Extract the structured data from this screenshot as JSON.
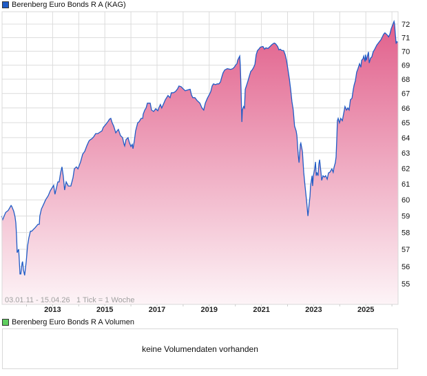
{
  "legend": {
    "price_label": "Berenberg Euro Bonds R A (KAG)",
    "price_color": "#1f5bc6",
    "volume_label": "Berenberg Euro Bonds R A Volumen",
    "volume_color": "#5fcf5f"
  },
  "volume": {
    "message": "keine Volumendaten vorhanden"
  },
  "chart_data": {
    "type": "area",
    "title": "Berenberg Euro Bonds R A (KAG)",
    "range_label": "03.01.11 - 15.04.26",
    "tick_label": "1 Tick = 1 Woche",
    "xlabel": "",
    "ylabel": "",
    "y_scale": "log",
    "ylim": [
      54.2,
      72.9
    ],
    "xlim": [
      2011.0,
      2026.29
    ],
    "grid": true,
    "x_tick_labels": [
      "2013",
      "2015",
      "2017",
      "2019",
      "2021",
      "2023",
      "2025"
    ],
    "y_tick_labels": [
      "72",
      "71",
      "70",
      "69",
      "68",
      "67",
      "66",
      "65",
      "64",
      "63",
      "62",
      "61",
      "60",
      "59",
      "58",
      "57",
      "56",
      "55"
    ],
    "colors": {
      "line": "#1f5bc6",
      "fill_top": "#e05a87",
      "fill_bottom": "#fdf4f7"
    },
    "series": [
      {
        "name": "Berenberg Euro Bonds R A (KAG)",
        "points": [
          [
            2011.04,
            59.0
          ],
          [
            2011.09,
            58.79
          ],
          [
            2011.2,
            59.22
          ],
          [
            2011.3,
            59.35
          ],
          [
            2011.41,
            59.65
          ],
          [
            2011.43,
            59.61
          ],
          [
            2011.51,
            59.3
          ],
          [
            2011.56,
            58.96
          ],
          [
            2011.59,
            58.58
          ],
          [
            2011.62,
            57.76
          ],
          [
            2011.64,
            56.8
          ],
          [
            2011.7,
            57.0
          ],
          [
            2011.72,
            56.44
          ],
          [
            2011.75,
            55.56
          ],
          [
            2011.78,
            55.56
          ],
          [
            2011.83,
            56.2
          ],
          [
            2011.85,
            56.28
          ],
          [
            2011.88,
            55.8
          ],
          [
            2011.93,
            55.48
          ],
          [
            2011.99,
            56.28
          ],
          [
            2012.04,
            57.2
          ],
          [
            2012.09,
            57.68
          ],
          [
            2012.15,
            58.08
          ],
          [
            2012.2,
            58.08
          ],
          [
            2012.28,
            58.21
          ],
          [
            2012.33,
            58.29
          ],
          [
            2012.44,
            58.5
          ],
          [
            2012.49,
            58.5
          ],
          [
            2012.51,
            59.0
          ],
          [
            2012.57,
            59.43
          ],
          [
            2012.65,
            59.7
          ],
          [
            2012.73,
            60.0
          ],
          [
            2012.83,
            60.26
          ],
          [
            2012.91,
            60.57
          ],
          [
            2012.99,
            60.78
          ],
          [
            2013.04,
            60.91
          ],
          [
            2013.09,
            60.35
          ],
          [
            2013.15,
            60.78
          ],
          [
            2013.2,
            61.13
          ],
          [
            2013.25,
            61.13
          ],
          [
            2013.31,
            61.74
          ],
          [
            2013.36,
            62.09
          ],
          [
            2013.41,
            61.48
          ],
          [
            2013.46,
            60.61
          ],
          [
            2013.52,
            61.13
          ],
          [
            2013.6,
            60.87
          ],
          [
            2013.7,
            60.87
          ],
          [
            2013.78,
            61.39
          ],
          [
            2013.83,
            61.96
          ],
          [
            2013.91,
            62.09
          ],
          [
            2013.97,
            61.96
          ],
          [
            2014.02,
            62.18
          ],
          [
            2014.07,
            62.41
          ],
          [
            2014.15,
            62.91
          ],
          [
            2014.23,
            63.09
          ],
          [
            2014.31,
            63.45
          ],
          [
            2014.39,
            63.77
          ],
          [
            2014.44,
            63.86
          ],
          [
            2014.49,
            63.91
          ],
          [
            2014.57,
            64.05
          ],
          [
            2014.65,
            64.27
          ],
          [
            2014.73,
            64.27
          ],
          [
            2014.81,
            64.36
          ],
          [
            2014.89,
            64.45
          ],
          [
            2014.94,
            64.68
          ],
          [
            2015.05,
            64.91
          ],
          [
            2015.13,
            65.1
          ],
          [
            2015.18,
            65.24
          ],
          [
            2015.23,
            65.29
          ],
          [
            2015.28,
            65.0
          ],
          [
            2015.34,
            64.77
          ],
          [
            2015.42,
            64.32
          ],
          [
            2015.47,
            64.45
          ],
          [
            2015.52,
            64.55
          ],
          [
            2015.6,
            64.14
          ],
          [
            2015.68,
            64.0
          ],
          [
            2015.73,
            63.59
          ],
          [
            2015.76,
            63.45
          ],
          [
            2015.81,
            63.86
          ],
          [
            2015.89,
            64.0
          ],
          [
            2015.94,
            63.68
          ],
          [
            2016.0,
            63.41
          ],
          [
            2016.05,
            63.55
          ],
          [
            2016.08,
            63.27
          ],
          [
            2016.13,
            63.77
          ],
          [
            2016.18,
            64.45
          ],
          [
            2016.26,
            65.0
          ],
          [
            2016.31,
            65.05
          ],
          [
            2016.39,
            65.29
          ],
          [
            2016.45,
            65.29
          ],
          [
            2016.47,
            65.57
          ],
          [
            2016.53,
            65.86
          ],
          [
            2016.58,
            66.0
          ],
          [
            2016.63,
            66.33
          ],
          [
            2016.74,
            66.33
          ],
          [
            2016.79,
            65.86
          ],
          [
            2016.87,
            65.76
          ],
          [
            2016.95,
            65.95
          ],
          [
            2017.03,
            65.81
          ],
          [
            2017.08,
            66.05
          ],
          [
            2017.13,
            66.24
          ],
          [
            2017.18,
            66.0
          ],
          [
            2017.24,
            66.24
          ],
          [
            2017.32,
            66.57
          ],
          [
            2017.42,
            66.86
          ],
          [
            2017.5,
            66.71
          ],
          [
            2017.55,
            67.05
          ],
          [
            2017.63,
            67.05
          ],
          [
            2017.71,
            67.14
          ],
          [
            2017.79,
            67.33
          ],
          [
            2017.84,
            67.52
          ],
          [
            2017.92,
            67.48
          ],
          [
            2018.0,
            67.33
          ],
          [
            2018.08,
            67.19
          ],
          [
            2018.16,
            67.24
          ],
          [
            2018.27,
            67.29
          ],
          [
            2018.32,
            66.9
          ],
          [
            2018.37,
            66.71
          ],
          [
            2018.45,
            66.71
          ],
          [
            2018.53,
            66.52
          ],
          [
            2018.64,
            66.33
          ],
          [
            2018.72,
            66.0
          ],
          [
            2018.79,
            65.86
          ],
          [
            2018.85,
            66.33
          ],
          [
            2018.93,
            66.67
          ],
          [
            2019.01,
            66.95
          ],
          [
            2019.06,
            67.14
          ],
          [
            2019.11,
            67.52
          ],
          [
            2019.16,
            67.67
          ],
          [
            2019.24,
            67.62
          ],
          [
            2019.3,
            67.67
          ],
          [
            2019.37,
            67.67
          ],
          [
            2019.43,
            67.81
          ],
          [
            2019.48,
            68.15
          ],
          [
            2019.53,
            68.45
          ],
          [
            2019.59,
            68.65
          ],
          [
            2019.69,
            68.75
          ],
          [
            2019.82,
            68.7
          ],
          [
            2019.9,
            68.75
          ],
          [
            2019.96,
            68.85
          ],
          [
            2020.01,
            69.0
          ],
          [
            2020.06,
            69.1
          ],
          [
            2020.09,
            69.35
          ],
          [
            2020.14,
            69.55
          ],
          [
            2020.17,
            69.65
          ],
          [
            2020.19,
            69.0
          ],
          [
            2020.22,
            67.29
          ],
          [
            2020.25,
            65.05
          ],
          [
            2020.27,
            65.86
          ],
          [
            2020.32,
            66.1
          ],
          [
            2020.35,
            66.0
          ],
          [
            2020.38,
            67.29
          ],
          [
            2020.43,
            67.57
          ],
          [
            2020.48,
            67.86
          ],
          [
            2020.54,
            68.25
          ],
          [
            2020.59,
            68.55
          ],
          [
            2020.64,
            68.65
          ],
          [
            2020.69,
            68.8
          ],
          [
            2020.75,
            69.05
          ],
          [
            2020.8,
            69.75
          ],
          [
            2020.85,
            70.05
          ],
          [
            2020.9,
            70.15
          ],
          [
            2020.96,
            70.3
          ],
          [
            2021.06,
            70.35
          ],
          [
            2021.12,
            70.15
          ],
          [
            2021.17,
            70.25
          ],
          [
            2021.25,
            70.2
          ],
          [
            2021.33,
            70.35
          ],
          [
            2021.41,
            70.5
          ],
          [
            2021.49,
            70.6
          ],
          [
            2021.54,
            70.55
          ],
          [
            2021.62,
            70.35
          ],
          [
            2021.67,
            70.1
          ],
          [
            2021.72,
            70.15
          ],
          [
            2021.78,
            70.05
          ],
          [
            2021.85,
            70.05
          ],
          [
            2021.91,
            69.75
          ],
          [
            2021.96,
            69.35
          ],
          [
            2022.01,
            68.75
          ],
          [
            2022.07,
            68.0
          ],
          [
            2022.12,
            67.29
          ],
          [
            2022.17,
            66.43
          ],
          [
            2022.22,
            65.86
          ],
          [
            2022.27,
            64.77
          ],
          [
            2022.33,
            64.45
          ],
          [
            2022.36,
            64.14
          ],
          [
            2022.41,
            62.86
          ],
          [
            2022.44,
            62.36
          ],
          [
            2022.49,
            63.55
          ],
          [
            2022.51,
            63.64
          ],
          [
            2022.57,
            63.09
          ],
          [
            2022.62,
            61.74
          ],
          [
            2022.67,
            60.87
          ],
          [
            2022.73,
            59.91
          ],
          [
            2022.78,
            59.0
          ],
          [
            2022.83,
            59.78
          ],
          [
            2022.86,
            60.22
          ],
          [
            2022.88,
            60.87
          ],
          [
            2022.94,
            61.52
          ],
          [
            2022.96,
            60.87
          ],
          [
            2022.99,
            61.52
          ],
          [
            2023.04,
            61.96
          ],
          [
            2023.07,
            62.41
          ],
          [
            2023.1,
            61.52
          ],
          [
            2023.12,
            61.74
          ],
          [
            2023.17,
            61.52
          ],
          [
            2023.2,
            62.27
          ],
          [
            2023.23,
            62.55
          ],
          [
            2023.28,
            61.74
          ],
          [
            2023.31,
            61.22
          ],
          [
            2023.36,
            61.52
          ],
          [
            2023.41,
            61.43
          ],
          [
            2023.46,
            61.52
          ],
          [
            2023.52,
            61.3
          ],
          [
            2023.57,
            61.7
          ],
          [
            2023.62,
            61.74
          ],
          [
            2023.7,
            61.96
          ],
          [
            2023.75,
            61.74
          ],
          [
            2023.78,
            62.05
          ],
          [
            2023.83,
            62.36
          ],
          [
            2023.86,
            62.73
          ],
          [
            2023.89,
            64.0
          ],
          [
            2023.91,
            65.14
          ],
          [
            2023.94,
            65.29
          ],
          [
            2023.99,
            65.0
          ],
          [
            2024.04,
            65.29
          ],
          [
            2024.1,
            65.14
          ],
          [
            2024.15,
            65.62
          ],
          [
            2024.2,
            66.1
          ],
          [
            2024.26,
            65.86
          ],
          [
            2024.31,
            66.0
          ],
          [
            2024.36,
            65.86
          ],
          [
            2024.41,
            66.57
          ],
          [
            2024.47,
            66.67
          ],
          [
            2024.52,
            67.29
          ],
          [
            2024.55,
            67.57
          ],
          [
            2024.6,
            67.9
          ],
          [
            2024.65,
            68.5
          ],
          [
            2024.7,
            68.75
          ],
          [
            2024.76,
            69.1
          ],
          [
            2024.81,
            68.85
          ],
          [
            2024.84,
            69.35
          ],
          [
            2024.89,
            69.45
          ],
          [
            2024.92,
            69.65
          ],
          [
            2024.97,
            69.25
          ],
          [
            2024.99,
            69.75
          ],
          [
            2025.02,
            69.35
          ],
          [
            2025.1,
            69.95
          ],
          [
            2025.13,
            69.15
          ],
          [
            2025.18,
            69.5
          ],
          [
            2025.23,
            69.6
          ],
          [
            2025.28,
            69.95
          ],
          [
            2025.34,
            70.15
          ],
          [
            2025.42,
            70.45
          ],
          [
            2025.5,
            70.65
          ],
          [
            2025.58,
            70.85
          ],
          [
            2025.63,
            71.05
          ],
          [
            2025.68,
            71.25
          ],
          [
            2025.73,
            71.35
          ],
          [
            2025.79,
            71.25
          ],
          [
            2025.84,
            71.15
          ],
          [
            2025.87,
            71.05
          ],
          [
            2025.92,
            71.25
          ],
          [
            2025.97,
            71.65
          ],
          [
            2026.02,
            71.9
          ],
          [
            2026.08,
            72.2
          ],
          [
            2026.1,
            72.0
          ],
          [
            2026.13,
            71.25
          ],
          [
            2026.16,
            70.55
          ],
          [
            2026.18,
            70.7
          ],
          [
            2026.24,
            70.65
          ]
        ]
      }
    ]
  }
}
